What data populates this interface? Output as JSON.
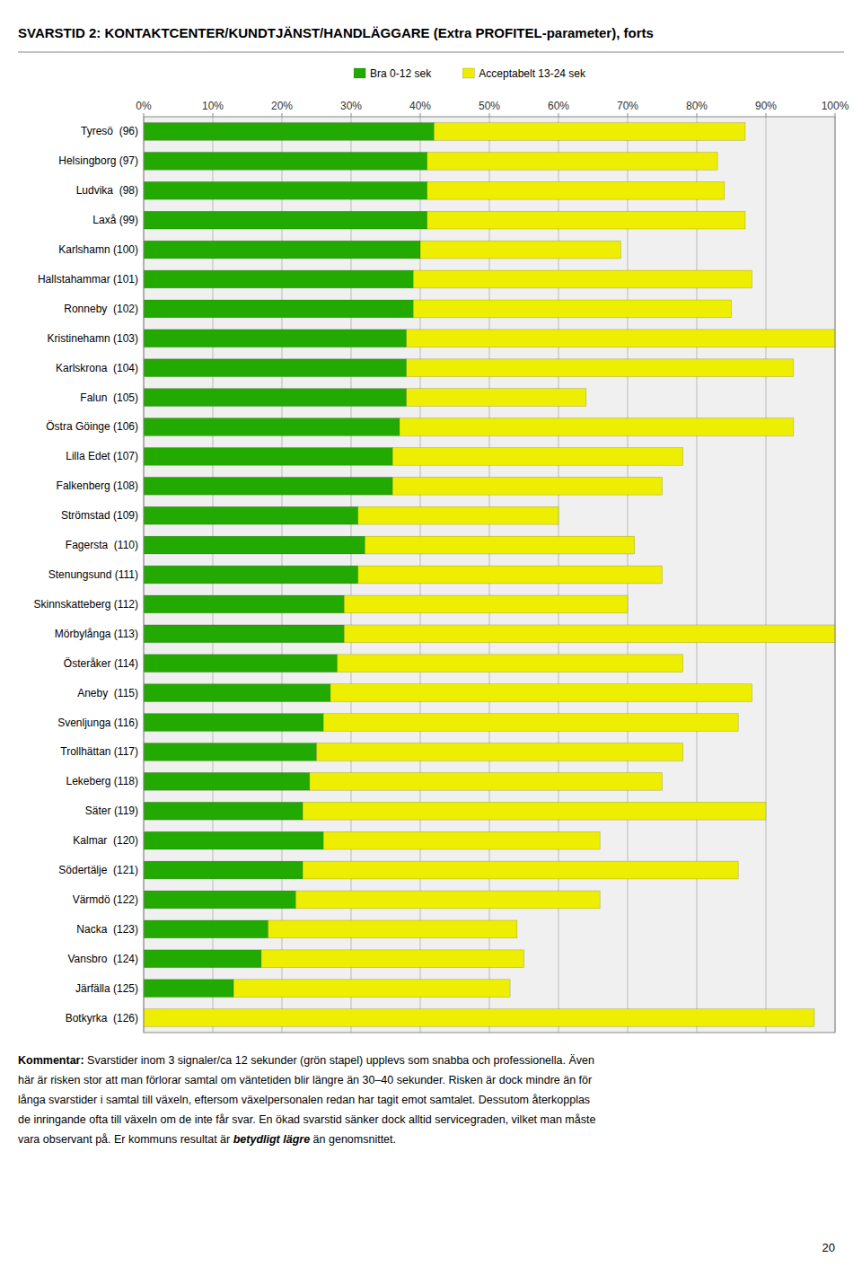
{
  "chart_data": {
    "type": "bar",
    "orientation": "horizontal",
    "stacked": true,
    "title": "SVARSTID 2: KONTAKTCENTER/KUNDTJÄNST/HANDLÄGGARE (Extra PROFITEL-parameter), forts",
    "categories": [
      "Tyresö  (96)",
      "Helsingborg (97)",
      "Ludvika  (98)",
      "Laxå (99)",
      "Karlshamn (100)",
      "Hallstahammar (101)",
      "Ronneby  (102)",
      "Kristinehamn (103)",
      "Karlskrona  (104)",
      "Falun  (105)",
      "Östra Göinge (106)",
      "Lilla Edet (107)",
      "Falkenberg (108)",
      "Strömstad (109)",
      "Fagersta  (110)",
      "Stenungsund (111)",
      "Skinnskatteberg (112)",
      "Mörbylånga (113)",
      "Österåker (114)",
      "Aneby  (115)",
      "Svenljunga (116)",
      "Trollhättan (117)",
      "Lekeberg (118)",
      "Säter (119)",
      "Kalmar  (120)",
      "Södertälje  (121)",
      "Värmdö (122)",
      "Nacka  (123)",
      "Vansbro  (124)",
      "Järfälla (125)",
      "Botkyrka  (126)"
    ],
    "series": [
      {
        "name": "Bra 0-12 sek",
        "color": "#22aa00",
        "values": [
          42,
          41,
          41,
          41,
          40,
          39,
          39,
          38,
          38,
          38,
          37,
          36,
          36,
          31,
          32,
          31,
          29,
          29,
          28,
          27,
          26,
          25,
          24,
          23,
          26,
          23,
          22,
          18,
          17,
          13,
          0
        ]
      },
      {
        "name": "Acceptabelt 13-24 sek",
        "color": "#eeee00",
        "values": [
          45,
          42,
          43,
          46,
          29,
          49,
          46,
          62,
          56,
          26,
          57,
          42,
          39,
          29,
          39,
          44,
          41,
          71,
          50,
          61,
          60,
          53,
          51,
          67,
          40,
          63,
          44,
          36,
          38,
          40,
          97
        ]
      }
    ],
    "xlim": [
      0,
      100
    ],
    "xticks": [
      {
        "value": 0,
        "label": "0%"
      },
      {
        "value": 10,
        "label": "10%"
      },
      {
        "value": 20,
        "label": "20%"
      },
      {
        "value": 30,
        "label": "30%"
      },
      {
        "value": 40,
        "label": "40%"
      },
      {
        "value": 50,
        "label": "50%"
      },
      {
        "value": 60,
        "label": "60%"
      },
      {
        "value": 70,
        "label": "70%"
      },
      {
        "value": 80,
        "label": "80%"
      },
      {
        "value": 90,
        "label": "90%"
      },
      {
        "value": 100,
        "label": "100%"
      }
    ],
    "grid": true,
    "legend": "top",
    "annotations": [
      "Kommentar: Svarstider inom 3 signaler/ca 12 sekunder (grön stapel) upplevs som snabba och professionella. Även",
      "här är risken stor att man förlorar samtal om väntetiden blir längre än 30–40 sekunder. Risken är dock mindre än för",
      "långa svarstider i samtal till växeln, eftersom växelpersonalen redan har tagit emot samtalet. Dessutom återkopplas",
      "de inringande ofta till växeln om de inte får svar. En ökad svarstid sänker dock alltid servicegraden, vilket man måste",
      "vara observant på. Er kommuns resultat är ",
      "betydligt lägre",
      " än genomsnittet.",
      "20"
    ]
  }
}
